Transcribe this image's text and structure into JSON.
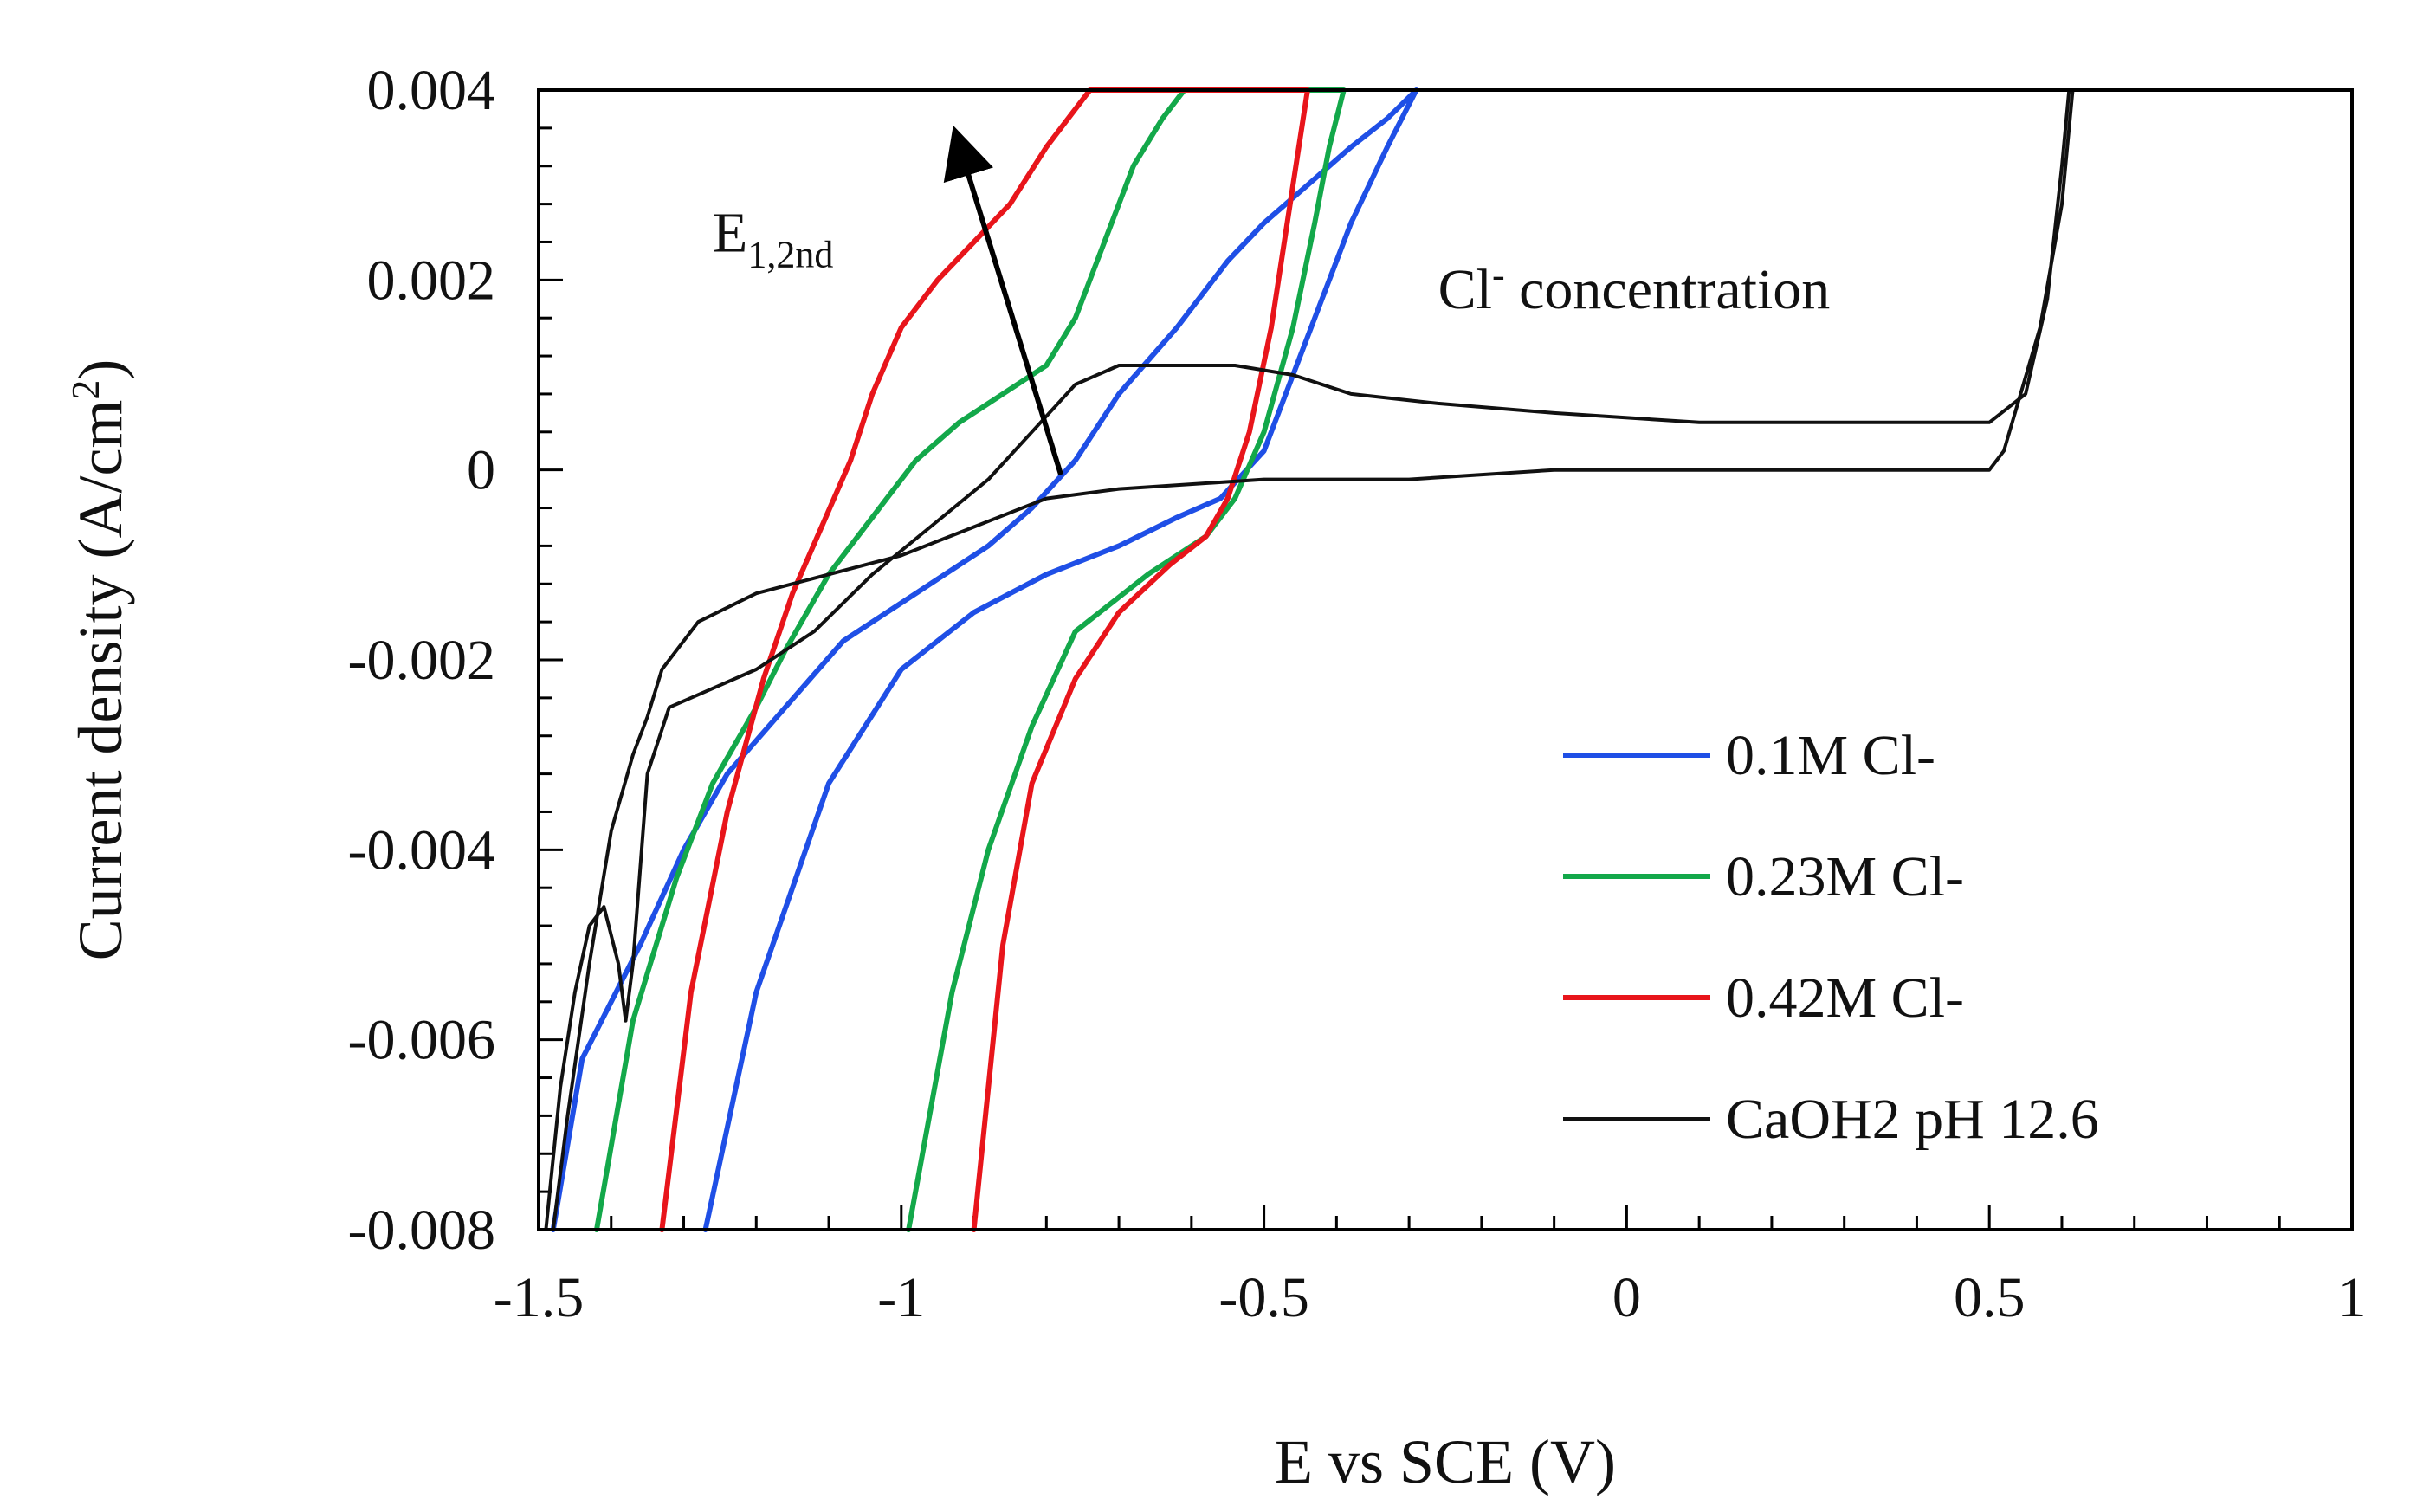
{
  "chart_data": {
    "type": "line",
    "xlabel": "E vs SCE (V)",
    "ylabel": "Current density (A/cm2)",
    "ylabel_parts": {
      "main": "Current density (A/cm",
      "sup": "2",
      "end": ")"
    },
    "xlim": [
      -1.5,
      1
    ],
    "ylim": [
      -0.008,
      0.004
    ],
    "x_ticks": [
      -1.5,
      -1,
      -0.5,
      0,
      0.5,
      1
    ],
    "x_tick_labels": [
      "-1.5",
      "-1",
      "-0.5",
      "0",
      "0.5",
      "1"
    ],
    "y_ticks": [
      -0.008,
      -0.006,
      -0.004,
      -0.002,
      0,
      0.002,
      0.004
    ],
    "y_tick_labels": [
      "-0.008",
      "-0.006",
      "-0.004",
      "-0.002",
      "0",
      "0.002",
      "0.004"
    ],
    "annotations": {
      "e_label_main": "E",
      "e_label_sub": "1,2nd",
      "cl_label_main": "Cl",
      "cl_label_sup": "-",
      "cl_label_rest": " concentration",
      "arrow": {
        "from": [
          -0.78,
          -5e-05
        ],
        "to": [
          -0.92,
          0.0036
        ]
      }
    },
    "series": [
      {
        "name": "0.1M Cl-",
        "color": "#1f4fe6",
        "x": [
          -1.48,
          -1.44,
          -1.36,
          -1.3,
          -1.24,
          -1.16,
          -1.08,
          -1.0,
          -0.94,
          -0.88,
          -0.82,
          -0.76,
          -0.7,
          -0.62,
          -0.55,
          -0.5,
          -0.44,
          -0.38,
          -0.33,
          -0.29,
          -0.29,
          -0.33,
          -0.38,
          -0.44,
          -0.5,
          -0.56,
          -0.62,
          -0.7,
          -0.8,
          -0.9,
          -1.0,
          -1.1,
          -1.2,
          -1.27
        ],
        "y": [
          -0.008,
          -0.0062,
          -0.005,
          -0.004,
          -0.0032,
          -0.0025,
          -0.0018,
          -0.0014,
          -0.0011,
          -0.0008,
          -0.0004,
          0.0001,
          0.0008,
          0.0015,
          0.0022,
          0.0026,
          0.003,
          0.0034,
          0.0037,
          0.004,
          0.004,
          0.0034,
          0.0026,
          0.0014,
          0.0002,
          -0.0003,
          -0.0005,
          -0.0008,
          -0.0011,
          -0.0015,
          -0.0021,
          -0.0033,
          -0.0055,
          -0.008
        ]
      },
      {
        "name": "0.23M Cl-",
        "color": "#13a84a",
        "x": [
          -1.42,
          -1.37,
          -1.31,
          -1.26,
          -1.2,
          -1.16,
          -1.1,
          -1.04,
          -0.98,
          -0.92,
          -0.86,
          -0.8,
          -0.76,
          -0.72,
          -0.68,
          -0.64,
          -0.61,
          -0.39,
          -0.41,
          -0.43,
          -0.46,
          -0.5,
          -0.54,
          -0.58,
          -0.66,
          -0.76,
          -0.82,
          -0.88,
          -0.93,
          -0.99
        ],
        "y": [
          -0.008,
          -0.0058,
          -0.0043,
          -0.0033,
          -0.0025,
          -0.0019,
          -0.0011,
          -0.0005,
          0.0001,
          0.0005,
          0.0008,
          0.0011,
          0.0016,
          0.0024,
          0.0032,
          0.0037,
          0.004,
          0.004,
          0.0034,
          0.0026,
          0.0015,
          0.0004,
          -0.0003,
          -0.0007,
          -0.0011,
          -0.0017,
          -0.0027,
          -0.004,
          -0.0055,
          -0.008
        ]
      },
      {
        "name": "0.42M Cl-",
        "color": "#e8151b",
        "x": [
          -1.33,
          -1.29,
          -1.24,
          -1.19,
          -1.15,
          -1.11,
          -1.07,
          -1.04,
          -1.0,
          -0.95,
          -0.9,
          -0.85,
          -0.8,
          -0.76,
          -0.74,
          -0.44,
          -0.46,
          -0.49,
          -0.52,
          -0.55,
          -0.58,
          -0.63,
          -0.7,
          -0.76,
          -0.82,
          -0.86,
          -0.9
        ],
        "y": [
          -0.008,
          -0.0055,
          -0.0036,
          -0.0022,
          -0.0013,
          -0.0006,
          0.0001,
          0.0008,
          0.0015,
          0.002,
          0.0024,
          0.0028,
          0.0034,
          0.0038,
          0.004,
          0.004,
          0.003,
          0.0015,
          0.0004,
          -0.0003,
          -0.0007,
          -0.001,
          -0.0015,
          -0.0022,
          -0.0033,
          -0.005,
          -0.008
        ]
      },
      {
        "name": "CaOH2 pH 12.6",
        "color": "#111111",
        "x": [
          -1.49,
          -1.47,
          -1.45,
          -1.43,
          -1.41,
          -1.39,
          -1.38,
          -1.37,
          -1.35,
          -1.32,
          -1.26,
          -1.2,
          -1.12,
          -1.04,
          -0.96,
          -0.88,
          -0.82,
          -0.76,
          -0.7,
          -0.62,
          -0.54,
          -0.46,
          -0.38,
          -0.26,
          -0.1,
          0.1,
          0.3,
          0.5,
          0.55,
          0.58,
          0.6,
          0.61,
          0.615,
          0.6,
          0.57,
          0.52,
          0.5,
          0.3,
          0.1,
          -0.1,
          -0.3,
          -0.5,
          -0.7,
          -0.8,
          -0.9,
          -1.0,
          -1.1,
          -1.2,
          -1.28,
          -1.33,
          -1.35,
          -1.37,
          -1.4,
          -1.43,
          -1.46,
          -1.48
        ],
        "y": [
          -0.008,
          -0.0065,
          -0.0055,
          -0.0048,
          -0.0046,
          -0.0052,
          -0.0058,
          -0.0052,
          -0.0032,
          -0.0025,
          -0.0023,
          -0.0021,
          -0.0017,
          -0.0011,
          -0.0006,
          -0.0001,
          0.0004,
          0.0009,
          0.0011,
          0.0011,
          0.0011,
          0.001,
          0.0008,
          0.0007,
          0.0006,
          0.0005,
          0.0005,
          0.0005,
          0.0008,
          0.0018,
          0.0032,
          0.004,
          0.004,
          0.0028,
          0.0015,
          0.0002,
          0.0,
          0.0,
          0.0,
          0.0,
          -0.0001,
          -0.0001,
          -0.0002,
          -0.0003,
          -0.0006,
          -0.0009,
          -0.0011,
          -0.0013,
          -0.0016,
          -0.0021,
          -0.0026,
          -0.003,
          -0.0038,
          -0.0052,
          -0.0068,
          -0.008
        ]
      }
    ]
  }
}
